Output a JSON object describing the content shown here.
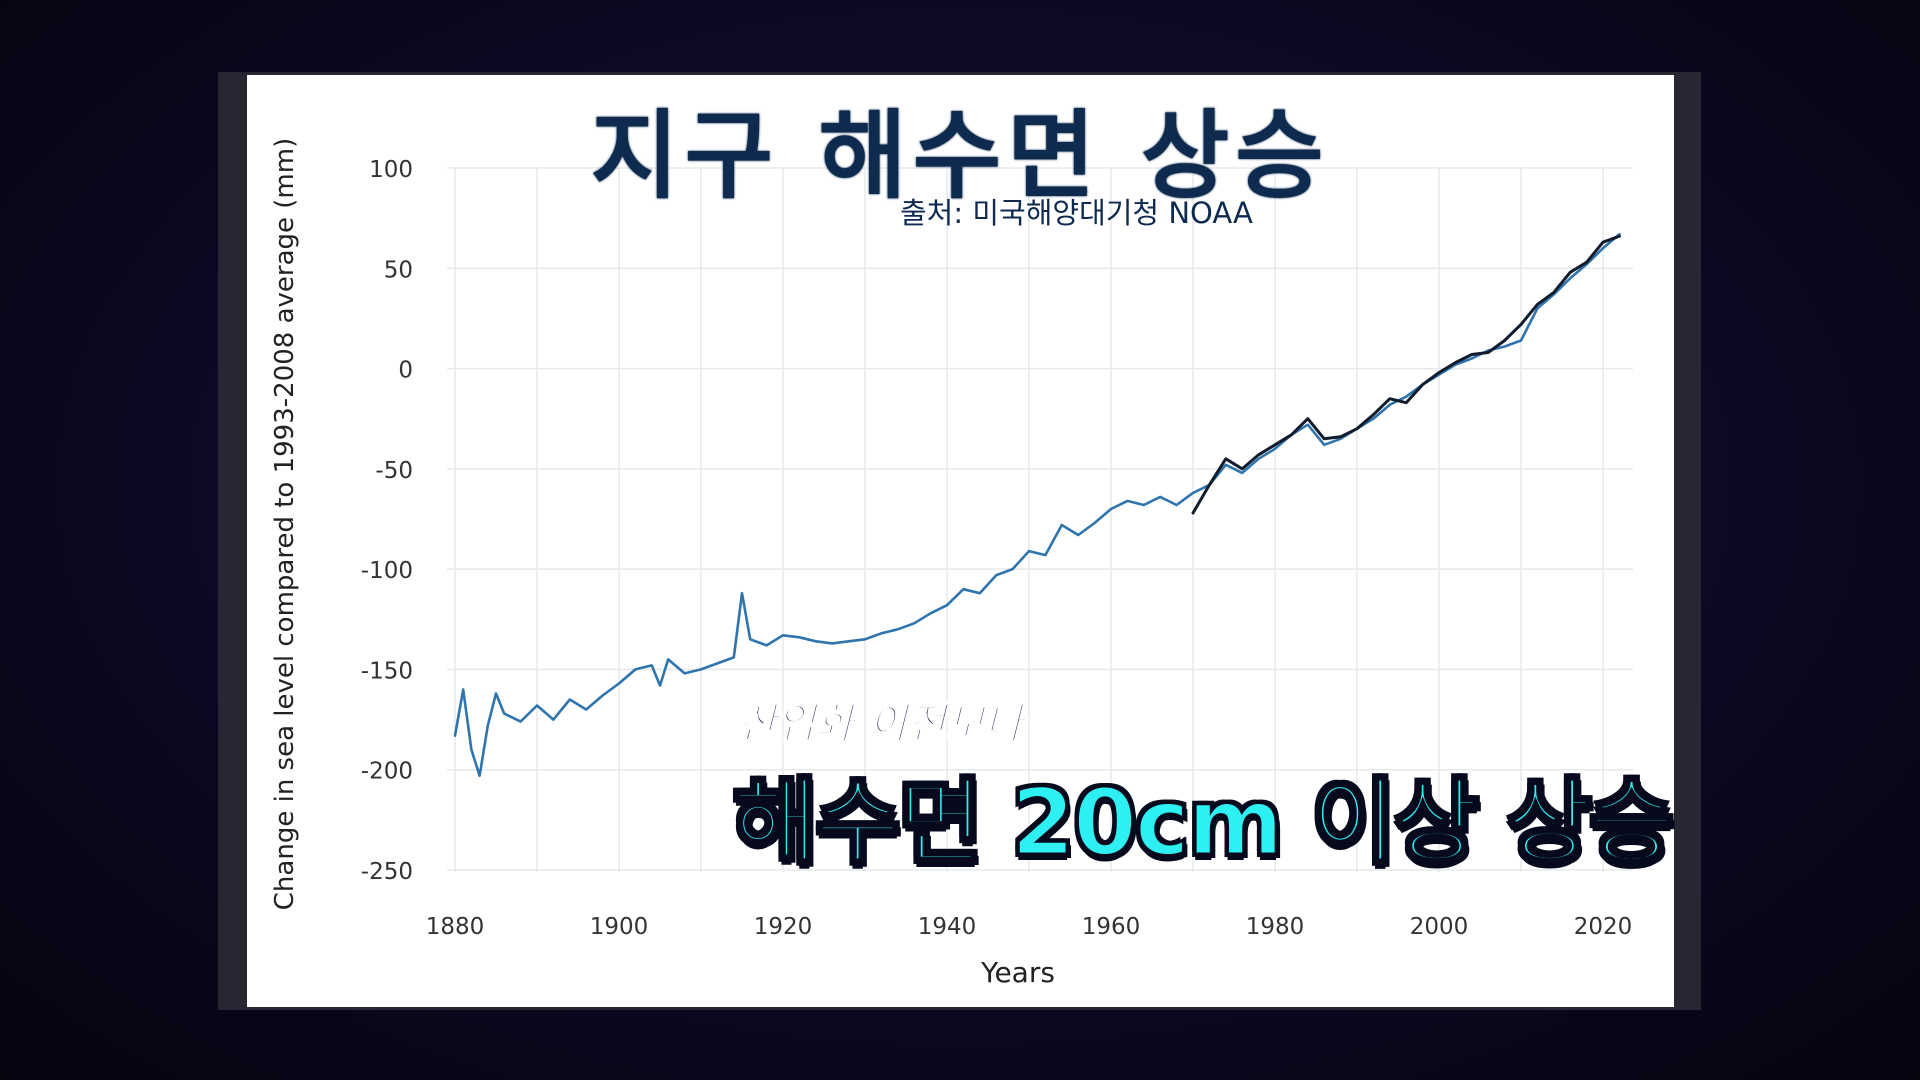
{
  "title": "지구 해수면 상승",
  "source": "출처: 미국해양대기청 NOAA",
  "caption": {
    "line1": "산업화 이전보다",
    "line2": "해수면 20cm 이상 상승"
  },
  "colors": {
    "series1": "#2f74ad",
    "series2": "#111c2c",
    "title": "#0e2a4e",
    "caption": "#2ef0f2"
  },
  "chart_data": {
    "type": "line",
    "xlabel": "Years",
    "ylabel": "Change in sea level compared to 1993-2008 average (mm)",
    "xlim": [
      1880,
      2022
    ],
    "ylim": [
      -250,
      100
    ],
    "xticks": [
      1880,
      1900,
      1920,
      1940,
      1960,
      1980,
      2000,
      2020
    ],
    "yticks": [
      100,
      50,
      0,
      -50,
      -100,
      -150,
      -200,
      -250
    ],
    "grid": true,
    "series": [
      {
        "color": "#2f74ad",
        "x": [
          1880,
          1881,
          1882,
          1883,
          1884,
          1885,
          1886,
          1888,
          1890,
          1892,
          1894,
          1896,
          1898,
          1900,
          1902,
          1904,
          1905,
          1906,
          1908,
          1910,
          1912,
          1914,
          1915,
          1916,
          1918,
          1920,
          1922,
          1924,
          1926,
          1928,
          1930,
          1932,
          1934,
          1936,
          1938,
          1940,
          1942,
          1944,
          1946,
          1948,
          1950,
          1952,
          1954,
          1956,
          1958,
          1960,
          1962,
          1964,
          1966,
          1968,
          1970,
          1972,
          1974,
          1976,
          1978,
          1980,
          1982,
          1984,
          1986,
          1988,
          1990,
          1992,
          1994,
          1996,
          1998,
          2000,
          2002,
          2004,
          2006,
          2008,
          2010,
          2012,
          2014,
          2016,
          2018,
          2020,
          2022
        ],
        "y": [
          -183,
          -160,
          -190,
          -203,
          -178,
          -162,
          -172,
          -176,
          -168,
          -175,
          -165,
          -170,
          -163,
          -157,
          -150,
          -148,
          -158,
          -145,
          -152,
          -150,
          -147,
          -144,
          -112,
          -135,
          -138,
          -133,
          -134,
          -136,
          -137,
          -136,
          -135,
          -132,
          -130,
          -127,
          -122,
          -118,
          -110,
          -112,
          -103,
          -100,
          -91,
          -93,
          -78,
          -83,
          -77,
          -70,
          -66,
          -68,
          -64,
          -68,
          -62,
          -58,
          -48,
          -52,
          -45,
          -40,
          -33,
          -28,
          -38,
          -35,
          -30,
          -25,
          -18,
          -14,
          -8,
          -3,
          2,
          5,
          9,
          11,
          14,
          30,
          37,
          45,
          52,
          60,
          67
        ]
      },
      {
        "color": "#111c2c",
        "x": [
          1970,
          1972,
          1974,
          1976,
          1978,
          1980,
          1982,
          1984,
          1986,
          1988,
          1990,
          1992,
          1994,
          1996,
          1998,
          2000,
          2002,
          2004,
          2006,
          2008,
          2010,
          2012,
          2014,
          2016,
          2018,
          2020,
          2022
        ],
        "y": [
          -72,
          -58,
          -45,
          -50,
          -43,
          -38,
          -33,
          -25,
          -35,
          -34,
          -30,
          -23,
          -15,
          -17,
          -8,
          -2,
          3,
          7,
          8,
          14,
          22,
          32,
          38,
          48,
          53,
          63,
          66
        ]
      }
    ]
  }
}
